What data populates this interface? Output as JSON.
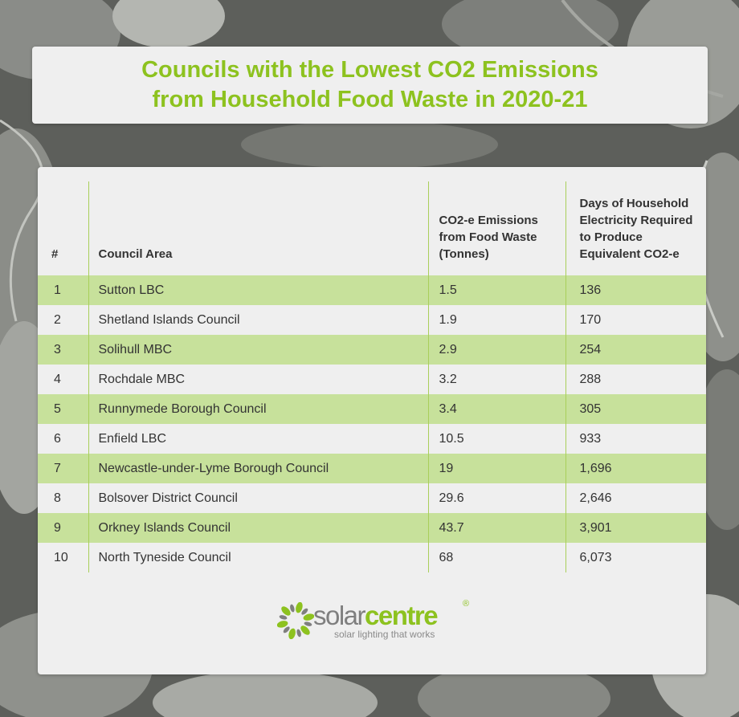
{
  "title": {
    "line1": "Councils with the Lowest CO2 Emissions",
    "line2": "from Household Food Waste in 2020-21"
  },
  "table": {
    "headers": {
      "rank": "#",
      "council": "Council Area",
      "emissions": "CO2-e Emissions from Food Waste (Tonnes)",
      "days": "Days of Household Electricity Required to Produce Equivalent CO2-e"
    },
    "rows": [
      {
        "rank": "1",
        "council": "Sutton LBC",
        "emissions": "1.5",
        "days": "136"
      },
      {
        "rank": "2",
        "council": "Shetland Islands Council",
        "emissions": "1.9",
        "days": "170"
      },
      {
        "rank": "3",
        "council": "Solihull MBC",
        "emissions": "2.9",
        "days": "254"
      },
      {
        "rank": "4",
        "council": "Rochdale MBC",
        "emissions": "3.2",
        "days": "288"
      },
      {
        "rank": "5",
        "council": "Runnymede Borough Council",
        "emissions": "3.4",
        "days": "305"
      },
      {
        "rank": "6",
        "council": "Enfield LBC",
        "emissions": "10.5",
        "days": "933"
      },
      {
        "rank": "7",
        "council": "Newcastle-under-Lyme Borough Council",
        "emissions": "19",
        "days": "1,696"
      },
      {
        "rank": "8",
        "council": "Bolsover District Council",
        "emissions": "29.6",
        "days": "2,646"
      },
      {
        "rank": "9",
        "council": "Orkney Islands Council",
        "emissions": "43.7",
        "days": "3,901"
      },
      {
        "rank": "10",
        "council": "North Tyneside Council",
        "emissions": "68",
        "days": "6,073"
      }
    ]
  },
  "logo": {
    "word_part1": "solar",
    "word_part2": "centre",
    "registered": "®",
    "tagline": "solar lighting that works",
    "icon": "sun-leaf-icon"
  },
  "colors": {
    "accent_green": "#8dc21f",
    "row_highlight": "#c7e19b",
    "card_bg": "#efefef"
  }
}
